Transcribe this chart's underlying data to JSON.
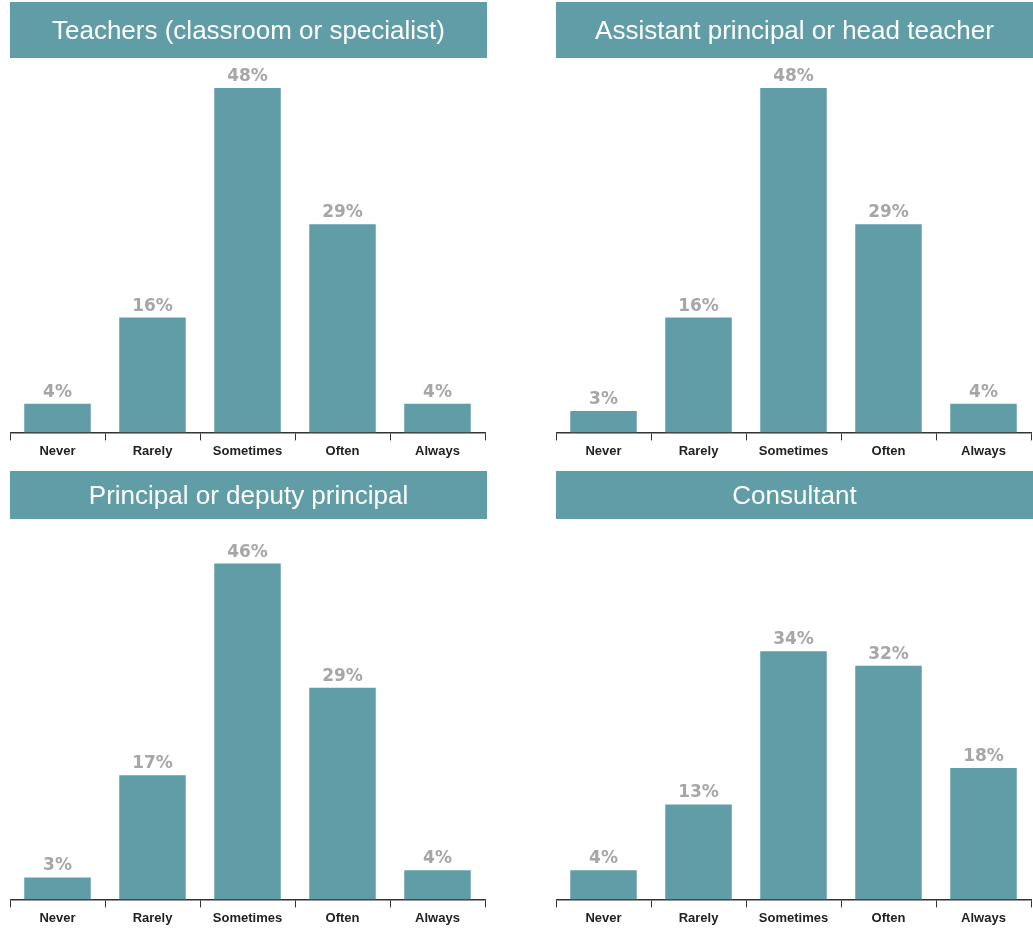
{
  "chart_data": [
    {
      "type": "bar",
      "title": "Teachers (classroom or specialist)",
      "categories": [
        "Never",
        "Rarely",
        "Sometimes",
        "Often",
        "Always"
      ],
      "values": [
        4,
        16,
        48,
        29,
        4
      ],
      "value_labels": [
        "4%",
        "16%",
        "48%",
        "29%",
        "4%"
      ],
      "color": "#609da7",
      "tick_labels": "x",
      "legend": false,
      "grid": false
    },
    {
      "type": "bar",
      "title": "Assistant principal or head teacher",
      "categories": [
        "Never",
        "Rarely",
        "Sometimes",
        "Often",
        "Always"
      ],
      "values": [
        3,
        16,
        48,
        29,
        4
      ],
      "value_labels": [
        "3%",
        "16%",
        "48%",
        "29%",
        "4%"
      ],
      "color": "#609da7",
      "tick_labels": "x",
      "legend": false,
      "grid": false
    },
    {
      "type": "bar",
      "title": "Principal or deputy principal",
      "categories": [
        "Never",
        "Rarely",
        "Sometimes",
        "Often",
        "Always"
      ],
      "values": [
        3,
        17,
        46,
        29,
        4
      ],
      "value_labels": [
        "3%",
        "17%",
        "46%",
        "29%",
        "4%"
      ],
      "color": "#609da7",
      "tick_labels": "x",
      "legend": false,
      "grid": false
    },
    {
      "type": "bar",
      "title": "Consultant",
      "categories": [
        "Never",
        "Rarely",
        "Sometimes",
        "Often",
        "Always"
      ],
      "values": [
        4,
        13,
        34,
        32,
        18
      ],
      "value_labels": [
        "4%",
        "13%",
        "34%",
        "32%",
        "18%"
      ],
      "color": "#609da7",
      "tick_labels": "x",
      "legend": false,
      "grid": false
    }
  ]
}
